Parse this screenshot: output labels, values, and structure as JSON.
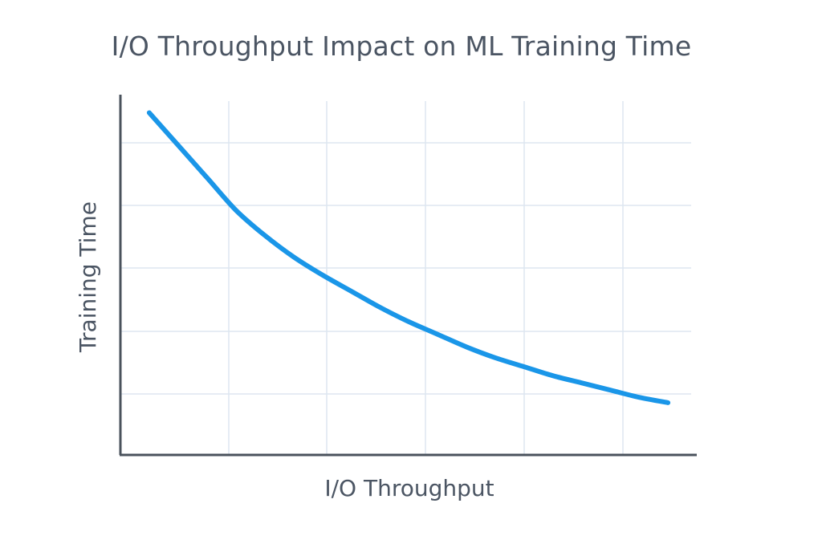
{
  "chart_data": {
    "type": "line",
    "title": "I/O Throughput Impact on ML Training Time",
    "xlabel": "I/O Throughput",
    "ylabel": "Training Time",
    "xlim": [
      0,
      1
    ],
    "ylim": [
      0,
      1
    ],
    "grid": true,
    "legend": "none",
    "tick_labels": "none",
    "series": [
      {
        "color": "#1a96e8",
        "x": [
          0.05,
          0.1,
          0.15,
          0.2,
          0.25,
          0.3,
          0.35,
          0.4,
          0.45,
          0.5,
          0.55,
          0.6,
          0.65,
          0.7,
          0.75,
          0.8,
          0.85,
          0.9,
          0.95
        ],
        "y": [
          0.95,
          0.86,
          0.77,
          0.68,
          0.61,
          0.55,
          0.5,
          0.455,
          0.41,
          0.37,
          0.335,
          0.3,
          0.27,
          0.245,
          0.22,
          0.2,
          0.18,
          0.16,
          0.145
        ]
      }
    ]
  },
  "colors": {
    "axis": "#4a525c",
    "grid": "#dde6f0",
    "text": "#4b5563",
    "line": "#1a96e8"
  }
}
